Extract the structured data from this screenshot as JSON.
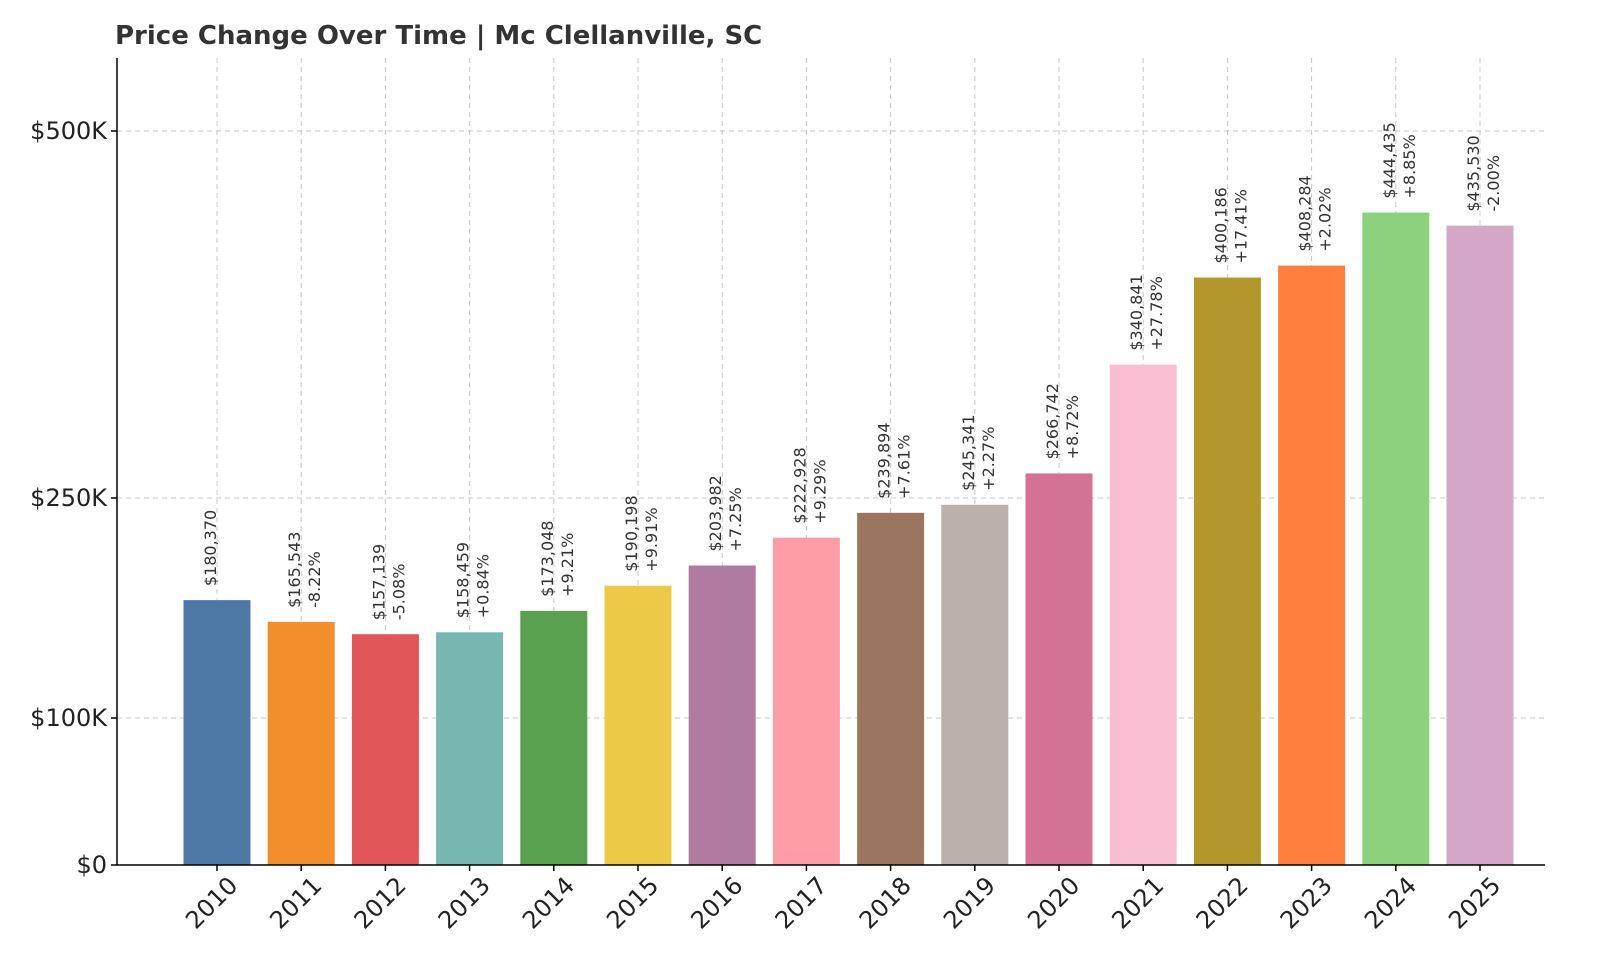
{
  "chart_data": {
    "type": "bar",
    "title": "Price Change Over Time | Mc Clellanville, SC",
    "xlabel": "",
    "ylabel": "",
    "categories": [
      "2010",
      "2011",
      "2012",
      "2013",
      "2014",
      "2015",
      "2016",
      "2017",
      "2018",
      "2019",
      "2020",
      "2021",
      "2022",
      "2023",
      "2024",
      "2025"
    ],
    "values": [
      180370,
      165543,
      157139,
      158459,
      173048,
      190198,
      203982,
      222928,
      239894,
      245341,
      266742,
      340841,
      400186,
      408284,
      444435,
      435530
    ],
    "value_labels": [
      "$180,370",
      "$165,543",
      "$157,139",
      "$158,459",
      "$173,048",
      "$190,198",
      "$203,982",
      "$222,928",
      "$239,894",
      "$245,341",
      "$266,742",
      "$340,841",
      "$400,186",
      "$408,284",
      "$444,435",
      "$435,530"
    ],
    "change_labels": [
      "",
      "-8.22%",
      "-5.08%",
      "+0.84%",
      "+9.21%",
      "+9.91%",
      "+7.25%",
      "+9.29%",
      "+7.61%",
      "+2.27%",
      "+8.72%",
      "+27.78%",
      "+17.41%",
      "+2.02%",
      "+8.85%",
      "-2.00%"
    ],
    "colors": [
      "#4e79a7",
      "#f28e2b",
      "#e15759",
      "#76b7b2",
      "#59a14f",
      "#edc948",
      "#b07aa1",
      "#ff9da7",
      "#9c755f",
      "#bab0ac",
      "#d37295",
      "#f8bfd2",
      "#b3972d",
      "#ff7f3f",
      "#8cd17d",
      "#d4a6c8"
    ],
    "y_ticks": [
      0,
      100000,
      250000,
      500000
    ],
    "y_tick_labels": [
      "$0",
      "$100K",
      "$250K",
      "$500K"
    ],
    "ylim": [
      0,
      550000
    ],
    "grid": true,
    "legend": "none"
  }
}
